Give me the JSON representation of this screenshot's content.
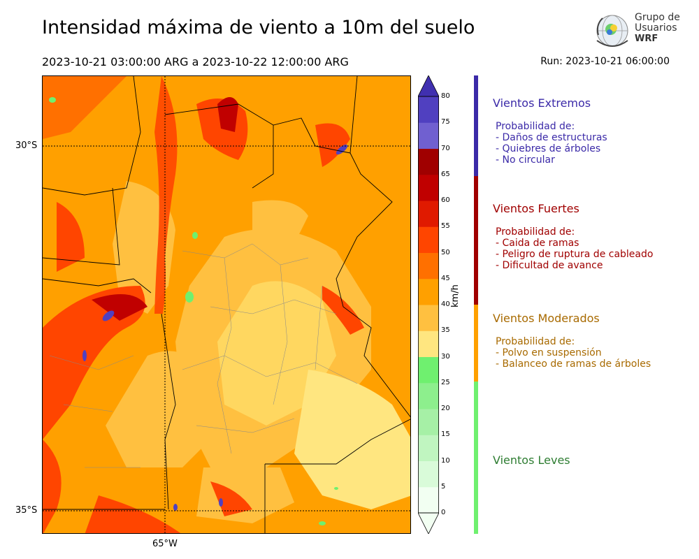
{
  "header": {
    "title": "Intensidad máxima de viento a 10m del suelo",
    "range": "2023-10-21 03:00:00 ARG  a  2023-10-22 12:00:00 ARG",
    "run": "Run: 2023-10-21 06:00:00"
  },
  "logo": {
    "line1": "Grupo de",
    "line2": "Usuarios",
    "line3": "WRF",
    "icon": "globe-radar-icon"
  },
  "map": {
    "lat_labels": [
      "30°S",
      "35°S"
    ],
    "lon_labels": [
      "65°W"
    ],
    "icon": "wind-speed-map"
  },
  "colorbar": {
    "unit": "km/h",
    "ticks": [
      "80",
      "75",
      "70",
      "65",
      "60",
      "55",
      "50",
      "45",
      "40",
      "35",
      "30",
      "25",
      "20",
      "15",
      "10",
      "5",
      "0"
    ],
    "colors": {
      "0": "#f2fff2",
      "5": "#d9fbd9",
      "10": "#c0f5c0",
      "15": "#a6f0a6",
      "20": "#8def8d",
      "25": "#6ff06f",
      "30": "#ffe680",
      "35": "#ffc040",
      "40": "#ffa000",
      "45": "#ff7000",
      "50": "#ff4500",
      "55": "#e01a00",
      "60": "#c00000",
      "65": "#a00000",
      "70": "#7060d0",
      "75": "#5040c0",
      "80": "#4030b0"
    }
  },
  "categories": [
    {
      "title": "Vientos Extremos",
      "color": "#3b2aa8",
      "lines": [
        "Probabilidad de:",
        "- Daños de estructuras",
        "- Quiebres de árboles",
        "- No circular"
      ]
    },
    {
      "title": "Vientos Fuertes",
      "color": "#a00000",
      "lines": [
        "Probabilidad de:",
        "- Caida de ramas",
        "- Peligro de ruptura de cableado",
        "- Dificultad de avance"
      ]
    },
    {
      "title": "Vientos Moderados",
      "color": "#a86a00",
      "lines": [
        "Probabilidad de:",
        "- Polvo en suspensión",
        "- Balanceo de ramas de árboles"
      ]
    },
    {
      "title": "Vientos Leves",
      "color": "#2e7d32",
      "lines": []
    }
  ]
}
